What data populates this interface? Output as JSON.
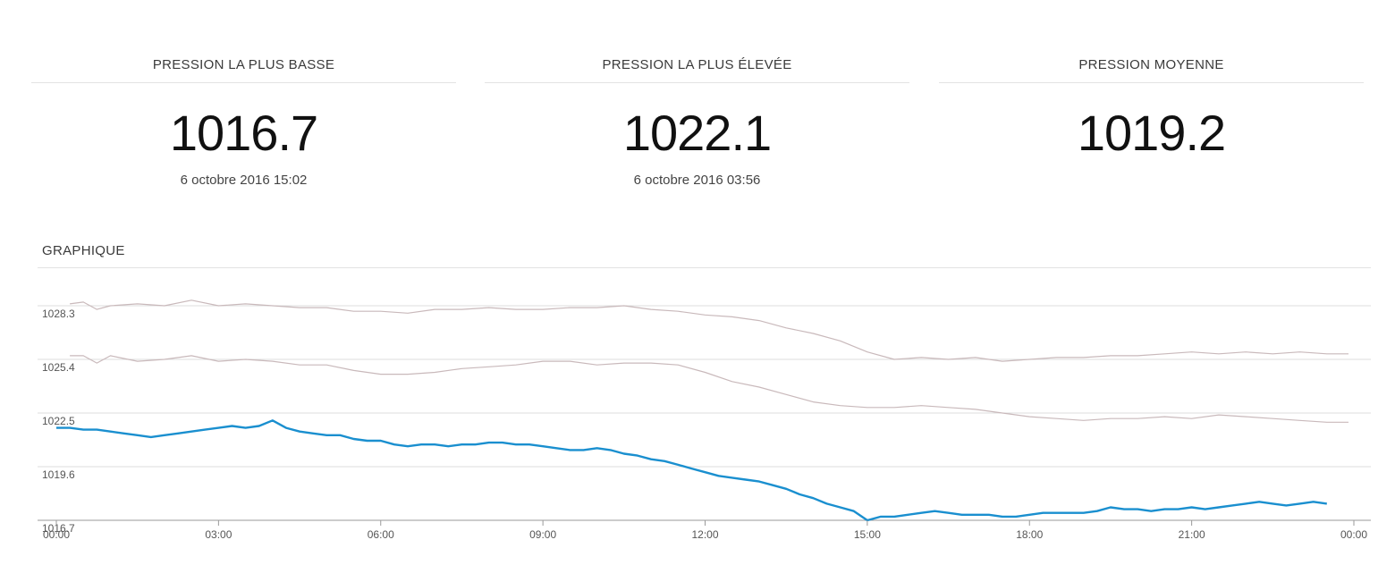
{
  "stats": {
    "min": {
      "label": "PRESSION LA PLUS BASSE",
      "value": "1016.7",
      "date": "6 octobre 2016 15:02"
    },
    "max": {
      "label": "PRESSION LA PLUS ÉLEVÉE",
      "value": "1022.1",
      "date": "6 octobre 2016 03:56"
    },
    "avg": {
      "label": "PRESSION MOYENNE",
      "value": "1019.2"
    }
  },
  "chart_section": {
    "title": "GRAPHIQUE"
  },
  "colors": {
    "main_series": "#1a8fcf",
    "reference_series": "#c9b9bb",
    "grid": "#dcdcdc",
    "axis": "#9a9a9a"
  },
  "chart_data": {
    "type": "line",
    "x_unit": "hours",
    "x_ticks": [
      "00:00",
      "03:00",
      "06:00",
      "09:00",
      "12:00",
      "15:00",
      "18:00",
      "21:00",
      "00:00"
    ],
    "xlim": [
      0,
      24
    ],
    "ylim": [
      1016.7,
      1028.3
    ],
    "y_ticks": [
      "1016.7",
      "1019.6",
      "1022.5",
      "1025.4",
      "1028.3"
    ],
    "grid": true,
    "series": [
      {
        "role": "reference",
        "x": [
          0.25,
          0.5,
          0.75,
          1,
          1.5,
          2,
          2.5,
          3,
          3.5,
          4,
          4.5,
          5,
          5.5,
          6,
          6.5,
          7,
          7.5,
          8,
          8.5,
          9,
          9.5,
          10,
          10.5,
          11,
          11.5,
          12,
          12.5,
          13,
          13.5,
          14,
          14.5,
          15,
          15.5,
          16,
          16.5,
          17,
          17.5,
          18,
          18.5,
          19,
          19.5,
          20,
          20.5,
          21,
          21.5,
          22,
          22.5,
          23,
          23.5,
          23.9
        ],
        "values": [
          1028.4,
          1028.5,
          1028.1,
          1028.3,
          1028.4,
          1028.3,
          1028.6,
          1028.3,
          1028.4,
          1028.3,
          1028.2,
          1028.2,
          1028.0,
          1028.0,
          1027.9,
          1028.1,
          1028.1,
          1028.2,
          1028.1,
          1028.1,
          1028.2,
          1028.2,
          1028.3,
          1028.1,
          1028.0,
          1027.8,
          1027.7,
          1027.5,
          1027.1,
          1026.8,
          1026.4,
          1025.8,
          1025.4,
          1025.5,
          1025.4,
          1025.5,
          1025.3,
          1025.4,
          1025.5,
          1025.5,
          1025.6,
          1025.6,
          1025.7,
          1025.8,
          1025.7,
          1025.8,
          1025.7,
          1025.8,
          1025.7,
          1025.7
        ]
      },
      {
        "role": "reference",
        "x": [
          0.25,
          0.5,
          0.75,
          1,
          1.5,
          2,
          2.5,
          3,
          3.5,
          4,
          4.5,
          5,
          5.5,
          6,
          6.5,
          7,
          7.5,
          8,
          8.5,
          9,
          9.5,
          10,
          10.5,
          11,
          11.5,
          12,
          12.5,
          13,
          13.5,
          14,
          14.5,
          15,
          15.5,
          16,
          16.5,
          17,
          17.5,
          18,
          18.5,
          19,
          19.5,
          20,
          20.5,
          21,
          21.5,
          22,
          22.5,
          23,
          23.5,
          23.9
        ],
        "values": [
          1025.6,
          1025.6,
          1025.2,
          1025.6,
          1025.3,
          1025.4,
          1025.6,
          1025.3,
          1025.4,
          1025.3,
          1025.1,
          1025.1,
          1024.8,
          1024.6,
          1024.6,
          1024.7,
          1024.9,
          1025.0,
          1025.1,
          1025.3,
          1025.3,
          1025.1,
          1025.2,
          1025.2,
          1025.1,
          1024.7,
          1024.2,
          1023.9,
          1023.5,
          1023.1,
          1022.9,
          1022.8,
          1022.8,
          1022.9,
          1022.8,
          1022.7,
          1022.5,
          1022.3,
          1022.2,
          1022.1,
          1022.2,
          1022.2,
          1022.3,
          1022.2,
          1022.4,
          1022.3,
          1022.2,
          1022.1,
          1022.0,
          1022.0
        ]
      },
      {
        "role": "main",
        "x": [
          0,
          0.25,
          0.5,
          0.75,
          1,
          1.25,
          1.5,
          1.75,
          2,
          2.25,
          2.5,
          2.75,
          3,
          3.25,
          3.5,
          3.75,
          4,
          4.25,
          4.5,
          4.75,
          5,
          5.25,
          5.5,
          5.75,
          6,
          6.25,
          6.5,
          6.75,
          7,
          7.25,
          7.5,
          7.75,
          8,
          8.25,
          8.5,
          8.75,
          9,
          9.25,
          9.5,
          9.75,
          10,
          10.25,
          10.5,
          10.75,
          11,
          11.25,
          11.5,
          11.75,
          12,
          12.25,
          12.5,
          12.75,
          13,
          13.25,
          13.5,
          13.75,
          14,
          14.25,
          14.5,
          14.75,
          15,
          15.25,
          15.5,
          15.75,
          16,
          16.25,
          16.5,
          16.75,
          17,
          17.25,
          17.5,
          17.75,
          18,
          18.25,
          18.5,
          18.75,
          19,
          19.25,
          19.5,
          19.75,
          20,
          20.25,
          20.5,
          20.75,
          21,
          21.25,
          21.5,
          21.75,
          22,
          22.25,
          22.5,
          22.75,
          23,
          23.25,
          23.5
        ],
        "values": [
          1021.7,
          1021.7,
          1021.6,
          1021.6,
          1021.5,
          1021.4,
          1021.3,
          1021.2,
          1021.3,
          1021.4,
          1021.5,
          1021.6,
          1021.7,
          1021.8,
          1021.7,
          1021.8,
          1022.1,
          1021.7,
          1021.5,
          1021.4,
          1021.3,
          1021.3,
          1021.1,
          1021.0,
          1021.0,
          1020.8,
          1020.7,
          1020.8,
          1020.8,
          1020.7,
          1020.8,
          1020.8,
          1020.9,
          1020.9,
          1020.8,
          1020.8,
          1020.7,
          1020.6,
          1020.5,
          1020.5,
          1020.6,
          1020.5,
          1020.3,
          1020.2,
          1020.0,
          1019.9,
          1019.7,
          1019.5,
          1019.3,
          1019.1,
          1019.0,
          1018.9,
          1018.8,
          1018.6,
          1018.4,
          1018.1,
          1017.9,
          1017.6,
          1017.4,
          1017.2,
          1016.7,
          1016.9,
          1016.9,
          1017.0,
          1017.1,
          1017.2,
          1017.1,
          1017.0,
          1017.0,
          1017.0,
          1016.9,
          1016.9,
          1017.0,
          1017.1,
          1017.1,
          1017.1,
          1017.1,
          1017.2,
          1017.4,
          1017.3,
          1017.3,
          1017.2,
          1017.3,
          1017.3,
          1017.4,
          1017.3,
          1017.4,
          1017.5,
          1017.6,
          1017.7,
          1017.6,
          1017.5,
          1017.6,
          1017.7,
          1017.6
        ]
      }
    ]
  }
}
